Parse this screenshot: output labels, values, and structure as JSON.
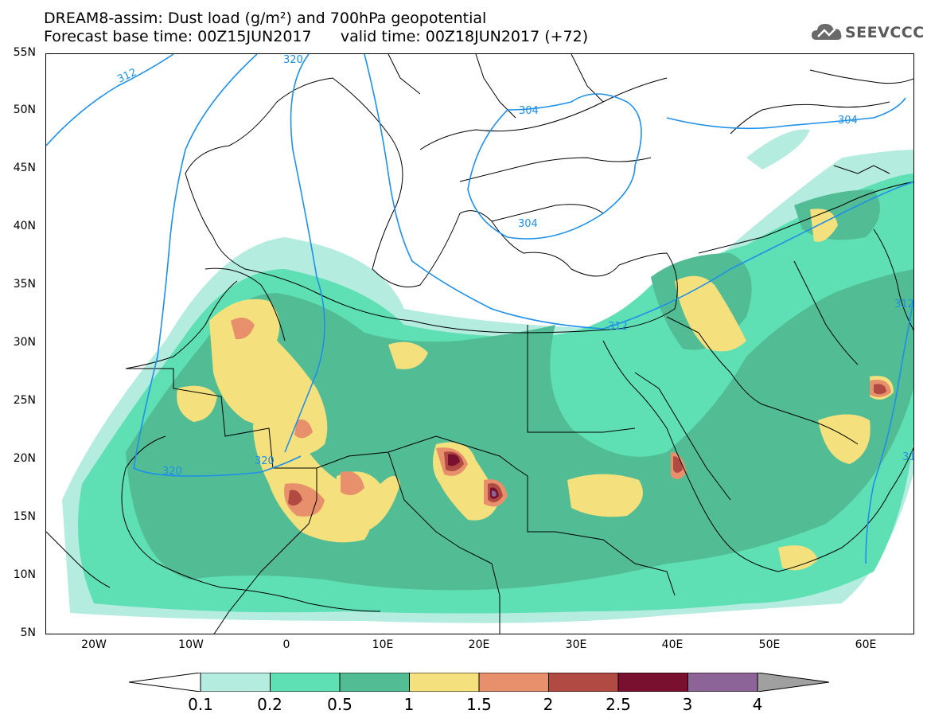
{
  "header": {
    "title_line1": "DREAM8-assim: Dust load (g/m²) and 700hPa geopotential",
    "title_line2": "Forecast base time: 00Z15JUN2017      valid time: 00Z18JUN2017 (+72)",
    "logo_text": "SEEVCCC"
  },
  "map": {
    "lat_labels": [
      "55N",
      "50N",
      "45N",
      "40N",
      "35N",
      "30N",
      "25N",
      "20N",
      "15N",
      "10N",
      "5N"
    ],
    "lon_labels": [
      "20W",
      "10W",
      "0",
      "10E",
      "20E",
      "30E",
      "40E",
      "50E",
      "60E"
    ],
    "contour_labels": [
      "320",
      "312",
      "304",
      "304",
      "304",
      "312",
      "312",
      "320",
      "320",
      "31"
    ]
  },
  "legend": {
    "labels": [
      "0.1",
      "0.2",
      "0.5",
      "1",
      "1.5",
      "2",
      "2.5",
      "3",
      "4"
    ],
    "colors": [
      "#b4ece0",
      "#5ee0b4",
      "#52bc94",
      "#f4e07c",
      "#e8906c",
      "#b04a42",
      "#7a1030",
      "#8c6498",
      "#a0a0a0"
    ]
  },
  "colors": {
    "c01": "#b4ece0",
    "c02": "#5ee0b4",
    "c05": "#52bc94",
    "c1": "#f4e07c",
    "c15": "#e8906c",
    "c2": "#b04a42",
    "c25": "#7a1030",
    "c3": "#8c6498",
    "contour": "#1e90e8"
  }
}
